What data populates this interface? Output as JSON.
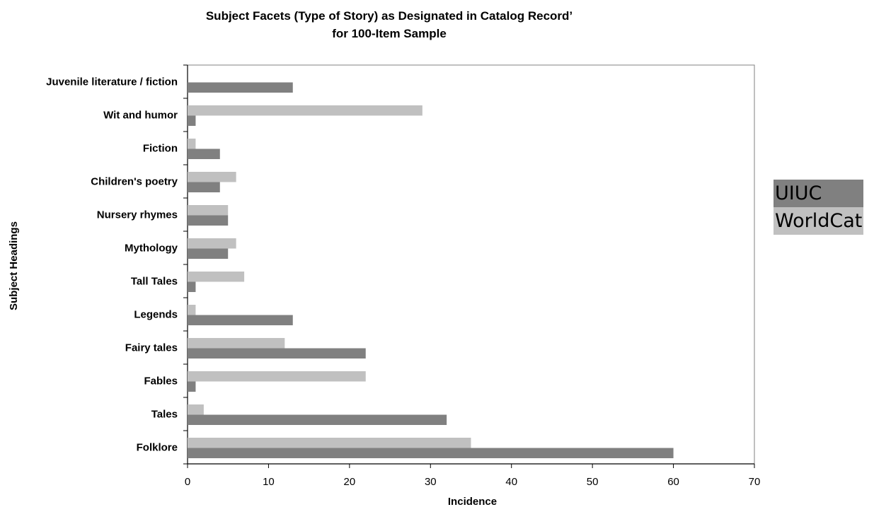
{
  "chart_data": {
    "type": "bar",
    "orientation": "horizontal",
    "title": [
      "Subject Facets (Type of Story) as Designated in Catalog Record’",
      "for 100-Item Sample"
    ],
    "xlabel": "Incidence",
    "ylabel": "Subject Headings",
    "xlim": [
      0,
      70
    ],
    "xticks": [
      0,
      10,
      20,
      30,
      40,
      50,
      60,
      70
    ],
    "grid": false,
    "legend_position": "right",
    "categories": [
      "Folklore",
      "Tales",
      "Fables",
      "Fairy tales",
      "Legends",
      "Tall Tales",
      "Mythology",
      "Nursery rhymes",
      "Children's poetry",
      "Fiction",
      "Wit and humor",
      "Juvenile literature / fiction"
    ],
    "series": [
      {
        "name": "UIUC",
        "color": "#808080",
        "values": [
          60,
          32,
          1,
          22,
          13,
          1,
          5,
          5,
          4,
          4,
          1,
          13
        ]
      },
      {
        "name": "WorldCat",
        "color": "#c0c0c0",
        "values": [
          35,
          2,
          22,
          12,
          1,
          7,
          6,
          5,
          6,
          1,
          29,
          0
        ]
      }
    ]
  }
}
